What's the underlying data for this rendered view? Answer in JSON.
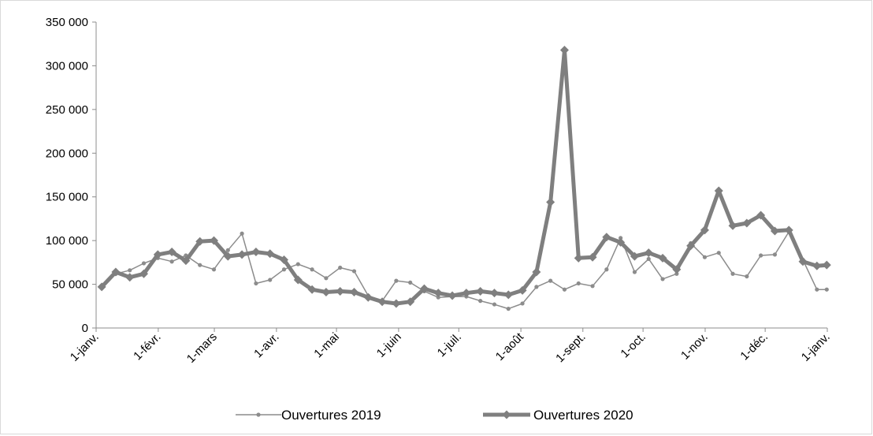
{
  "chart_data": {
    "type": "line",
    "title": "",
    "xlabel": "",
    "ylabel": "",
    "ylim": [
      0,
      350000
    ],
    "yticks": [
      0,
      50000,
      100000,
      150000,
      200000,
      250000,
      300000,
      350000
    ],
    "ytick_labels": [
      "0",
      "50 000",
      "100 000",
      "150 000",
      "200 000",
      "250 000",
      "300 000",
      "350 000"
    ],
    "x_unit": "week of year (1-janv. to next 1-janv.)",
    "xlim": [
      0,
      52.14
    ],
    "xticks": [
      0,
      4.43,
      8.43,
      12.86,
      17.14,
      21.57,
      25.86,
      30.29,
      34.71,
      39,
      43.43,
      47.71,
      52.14
    ],
    "xtick_labels": [
      "1-janv.",
      "1-févr.",
      "1-mars",
      "1-avr.",
      "1-mai",
      "1-juin",
      "1-juil.",
      "1-août",
      "1-sept.",
      "1-oct.",
      "1-nov.",
      "1-déc.",
      "1-janv."
    ],
    "grid": false,
    "legend_position": "bottom",
    "series": [
      {
        "name": "Ouvertures 2019",
        "color": "#8c8c8c",
        "style": "thin",
        "x": [
          0.4,
          1.4,
          2.4,
          3.4,
          4.4,
          5.4,
          6.4,
          7.4,
          8.4,
          9.4,
          10.4,
          11.4,
          12.4,
          13.4,
          14.4,
          15.4,
          16.4,
          17.4,
          18.4,
          19.4,
          20.4,
          21.4,
          22.4,
          23.4,
          24.4,
          25.4,
          26.4,
          27.4,
          28.4,
          29.4,
          30.4,
          31.4,
          32.4,
          33.4,
          34.4,
          35.4,
          36.4,
          37.4,
          38.4,
          39.4,
          40.4,
          41.4,
          42.4,
          43.4,
          44.4,
          45.4,
          46.4,
          47.4,
          48.4,
          49.4,
          50.4,
          51.4,
          52.1
        ],
        "values": [
          47000,
          62000,
          66000,
          74000,
          80000,
          76000,
          83000,
          72000,
          67000,
          89000,
          108000,
          51000,
          55000,
          67000,
          73000,
          67000,
          57000,
          69000,
          65000,
          37000,
          31000,
          54000,
          52000,
          42000,
          35000,
          36000,
          36000,
          31000,
          27000,
          22000,
          28000,
          47000,
          54000,
          44000,
          51000,
          48000,
          67000,
          103000,
          64000,
          79000,
          56000,
          62000,
          97000,
          81000,
          86000,
          62000,
          59000,
          83000,
          84000,
          110000,
          78000,
          44000,
          44000
        ]
      },
      {
        "name": "Ouvertures 2020",
        "color": "#7f7f7f",
        "style": "thick",
        "x": [
          0.4,
          1.4,
          2.4,
          3.4,
          4.4,
          5.4,
          6.4,
          7.4,
          8.4,
          9.4,
          10.4,
          11.4,
          12.4,
          13.4,
          14.4,
          15.4,
          16.4,
          17.4,
          18.4,
          19.4,
          20.4,
          21.4,
          22.4,
          23.4,
          24.4,
          25.4,
          26.4,
          27.4,
          28.4,
          29.4,
          30.4,
          31.4,
          32.4,
          33.4,
          34.4,
          35.4,
          36.4,
          37.4,
          38.4,
          39.4,
          40.4,
          41.4,
          42.4,
          43.4,
          44.4,
          45.4,
          46.4,
          47.4,
          48.4,
          49.4,
          50.4,
          51.4,
          52.1
        ],
        "values": [
          47000,
          64000,
          58000,
          62000,
          84000,
          87000,
          77000,
          99000,
          100000,
          82000,
          84000,
          87000,
          85000,
          78000,
          55000,
          44000,
          41000,
          42000,
          41000,
          35000,
          30000,
          28000,
          30000,
          45000,
          40000,
          37000,
          40000,
          42000,
          40000,
          38000,
          43000,
          64000,
          144000,
          318000,
          80000,
          81000,
          104000,
          98000,
          82000,
          86000,
          80000,
          67000,
          94000,
          112000,
          157000,
          117000,
          120000,
          129000,
          111000,
          112000,
          76000,
          71000,
          72000
        ]
      }
    ]
  }
}
